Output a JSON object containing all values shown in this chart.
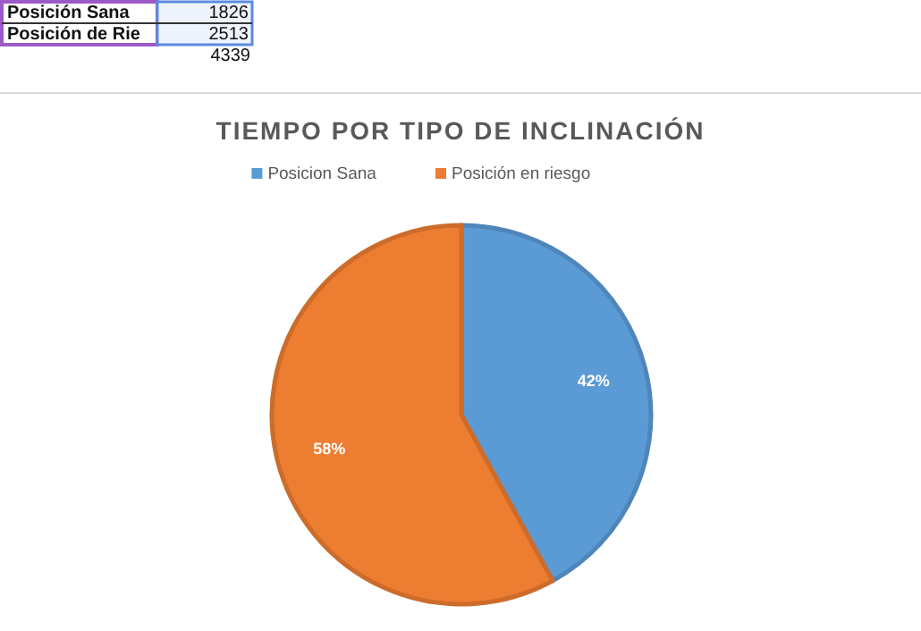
{
  "chart_data": {
    "type": "pie",
    "title": "TIEMPO POR TIPO DE INCLINACIÓN",
    "categories": [
      "Posicion Sana",
      "Posición en riesgo"
    ],
    "values": [
      42,
      58
    ],
    "colors": [
      "#5b9bd5",
      "#ed7d31"
    ],
    "value_labels": [
      "42%",
      "58%"
    ],
    "legend": "top",
    "annotations": [
      "Posición Sana",
      "1826",
      "Posición de Rie",
      "2513",
      "4339"
    ]
  }
}
